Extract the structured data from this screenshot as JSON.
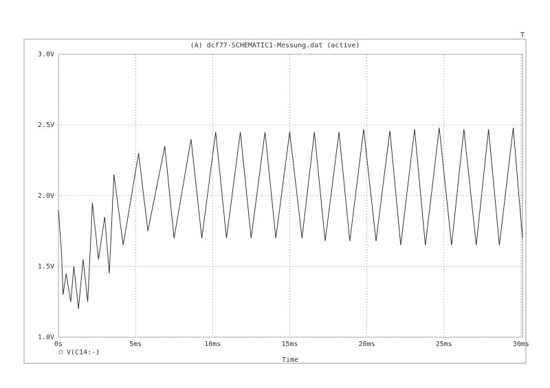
{
  "chart_data": {
    "type": "line",
    "title": "(A) dcf77-SCHEMATIC1-Messung.dat (active)",
    "corner_label": "T",
    "x_label": "Time",
    "xlim": [
      0,
      30.1
    ],
    "ylim": [
      1.0,
      3.0
    ],
    "xticks": [
      {
        "value": 0,
        "label": "0s"
      },
      {
        "value": 5,
        "label": "5ms"
      },
      {
        "value": 10,
        "label": "10ms"
      },
      {
        "value": 15,
        "label": "15ms"
      },
      {
        "value": 20,
        "label": "20ms"
      },
      {
        "value": 25,
        "label": "25ms"
      },
      {
        "value": 30,
        "label": "30ms"
      }
    ],
    "yticks": [
      {
        "value": 1.0,
        "label": "1.0V"
      },
      {
        "value": 1.5,
        "label": "1.5V"
      },
      {
        "value": 2.0,
        "label": "2.0V"
      },
      {
        "value": 2.5,
        "label": "2.5V"
      },
      {
        "value": 3.0,
        "label": "3.0V"
      }
    ],
    "grid": true,
    "x": [
      0,
      0.2,
      0.3,
      0.5,
      0.8,
      1.0,
      1.3,
      1.6,
      1.9,
      2.1,
      2.2,
      2.6,
      3.0,
      3.3,
      3.6,
      4.2,
      5.2,
      5.8,
      6.9,
      7.5,
      8.6,
      9.3,
      10.2,
      10.9,
      11.8,
      12.5,
      13.4,
      14.1,
      15.0,
      15.8,
      16.6,
      17.3,
      18.2,
      18.9,
      19.8,
      20.6,
      21.5,
      22.2,
      23.1,
      23.8,
      24.7,
      25.5,
      26.3,
      27.1,
      27.9,
      28.6,
      29.5,
      30.1
    ],
    "series": [
      {
        "name": "V(C14:-)",
        "color": "#333333",
        "values": [
          1.9,
          1.6,
          1.3,
          1.45,
          1.25,
          1.5,
          1.2,
          1.55,
          1.25,
          1.7,
          1.95,
          1.55,
          1.85,
          1.45,
          2.15,
          1.65,
          2.3,
          1.75,
          2.35,
          1.7,
          2.4,
          1.7,
          2.45,
          1.7,
          2.45,
          1.7,
          2.45,
          1.7,
          2.45,
          1.7,
          2.45,
          1.68,
          2.45,
          1.68,
          2.47,
          1.68,
          2.46,
          1.65,
          2.47,
          1.65,
          2.48,
          1.65,
          2.47,
          1.65,
          2.47,
          1.65,
          2.48,
          1.7
        ]
      }
    ]
  }
}
